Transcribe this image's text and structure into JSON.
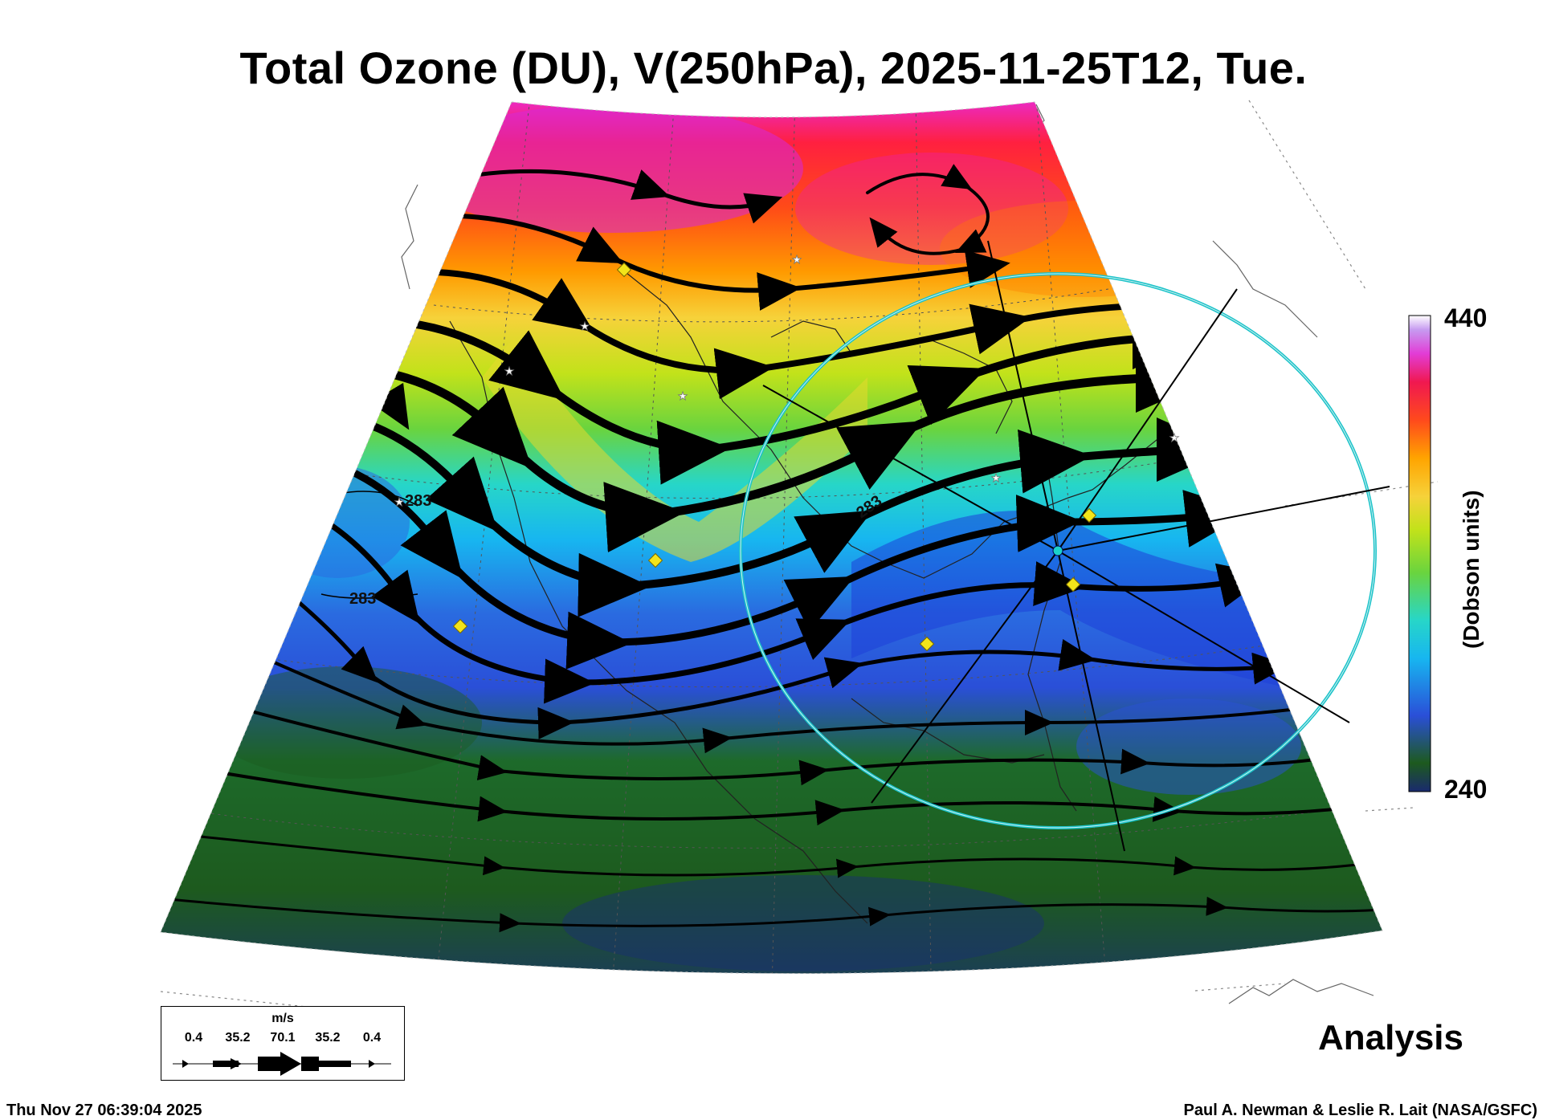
{
  "title": "Total Ozone (DU), V(250hPa), 2025-11-25T12, Tue.",
  "colorbar": {
    "max_label": "440",
    "min_label": "240",
    "title": "(Dobson units)",
    "colors": [
      "#1a2a6e",
      "#1d5a1e",
      "#2a4fd8",
      "#17b6f0",
      "#27d6c8",
      "#6ad43e",
      "#c2e21a",
      "#f6d23a",
      "#ffa400",
      "#ff4a1c",
      "#f01850",
      "#e23cd6",
      "#c69af0",
      "#ffffff"
    ]
  },
  "contour_labels": [
    "283",
    "283",
    "283"
  ],
  "legend": {
    "unit": "m/s",
    "values": [
      "0.4",
      "35.2",
      "70.1",
      "35.2",
      "0.4"
    ]
  },
  "analysis_label": "Analysis",
  "timestamp": "Thu Nov 27 06:39:04 2025",
  "credit": "Paul A. Newman & Leslie R. Lait (NASA/GSFC)"
}
